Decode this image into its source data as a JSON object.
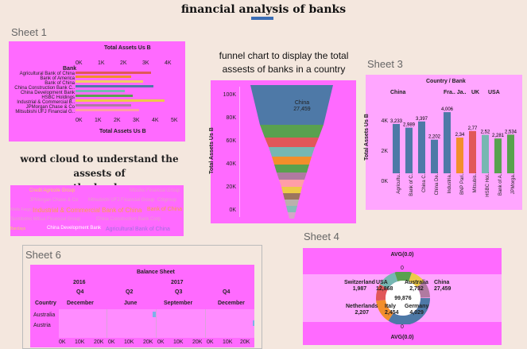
{
  "page_title": "financial analysis of banks",
  "sheet1": {
    "label": "Sheet 1",
    "axis_title": "Total Assets Us B",
    "row_header": "Bank",
    "ticks_top": [
      "0K",
      "1K",
      "2K",
      "3K",
      "4K"
    ],
    "ticks_bottom": [
      "0K",
      "1K",
      "2K",
      "3K",
      "4K",
      "5K"
    ],
    "banks": [
      "Agricultural Bank of China",
      "Bank of America",
      "Bank of China",
      "China Construction Bank C..",
      "China Development Bank",
      "HSBC Holdings",
      "Industrial & Commercial B..",
      "JPMorgan Chase & Co",
      "Mitsubishi UFJ Financial G.."
    ]
  },
  "funnel": {
    "heading_line1": "funnel chart to display the total",
    "heading_line2": "assests of banks in a country",
    "axis_title": "Total Assets Us B",
    "ticks": [
      "100K",
      "80K",
      "60K",
      "40K",
      "20K",
      "0K"
    ],
    "top_label": "China",
    "top_value": "27,459"
  },
  "sheet3": {
    "label": "Sheet 3",
    "header": "Country / Bank",
    "countries": [
      "China",
      "Fra.. Ja..",
      "UK",
      "USA"
    ],
    "axis_title": "Total Assets Us B",
    "ticks": [
      "4K",
      "2K",
      "0K"
    ],
    "bars": [
      {
        "name": "Agricultu..",
        "value": "3,233",
        "color": "#4e79a7"
      },
      {
        "name": "Bank of C..",
        "value": "2,989",
        "color": "#4e79a7"
      },
      {
        "name": "China C..",
        "value": "3,397",
        "color": "#4e79a7"
      },
      {
        "name": "China De..",
        "value": "2,202",
        "color": "#4e79a7"
      },
      {
        "name": "Industria..",
        "value": "4,006",
        "color": "#4e79a7"
      },
      {
        "name": "BNP Pari..",
        "value": "2,34",
        "color": "#f28e2b"
      },
      {
        "name": "Mitsubis..",
        "value": "2,77",
        "color": "#e15759"
      },
      {
        "name": "HSBC Hol..",
        "value": "2,52",
        "color": "#76b7b2"
      },
      {
        "name": "Bank of A..",
        "value": "2,281",
        "color": "#59a14f"
      },
      {
        "name": "JPMorga..",
        "value": "2,534",
        "color": "#59a14f"
      }
    ]
  },
  "wordcloud": {
    "heading_line1": "word cloud to understand the assests of",
    "heading_line2": "the banks",
    "words": [
      {
        "text": "Credit Agricole Group",
        "color": "#f1ce63",
        "size": 6
      },
      {
        "text": "Mizuho Financial Group",
        "color": "#e6a0c4",
        "size": 6
      },
      {
        "text": "JPMorgan Chase & Co",
        "color": "#e6a0c4",
        "size": 6
      },
      {
        "text": "Mitsubishi UFJ Financial Group",
        "color": "#e6a0c4",
        "size": 6
      },
      {
        "text": "Citigroup",
        "color": "#e6a0c4",
        "size": 6
      },
      {
        "text": "Wells Fargo",
        "color": "#e6a0c4",
        "size": 5
      },
      {
        "text": "Industrial & Commercial Bank of China",
        "color": "#f7a04b",
        "size": 8
      },
      {
        "text": "Bank of China",
        "color": "#f7a04b",
        "size": 7
      },
      {
        "text": "Sumitomo Mitsui Financial Group",
        "color": "#e6a0c4",
        "size": 6
      },
      {
        "text": "China Construction Bank Corp",
        "color": "#e6a0c4",
        "size": 6
      },
      {
        "text": "Barclays",
        "color": "#f1ce63",
        "size": 5
      },
      {
        "text": "China Development Bank",
        "color": "#ffffff",
        "size": 6
      },
      {
        "text": "Agricultural Bank of China",
        "color": "#a06ee0",
        "size": 7
      },
      {
        "text": "Deutsche Bank",
        "color": "#f1ce63",
        "size": 5
      }
    ]
  },
  "sheet6": {
    "label": "Sheet 6",
    "chart_title": "Balance Sheet",
    "years": [
      "2016",
      "2017"
    ],
    "quarters": [
      "Q4",
      "Q2",
      "Q3",
      "Q4"
    ],
    "months": [
      "December",
      "June",
      "September",
      "December"
    ],
    "country_header": "Country",
    "countries": [
      "Australia",
      "Austria"
    ],
    "axis_ticks": [
      "0K",
      "10K",
      "20K",
      "0K",
      "10K",
      "20K",
      "0K",
      "10K",
      "20K",
      "0K",
      "10K",
      "20K"
    ]
  },
  "sheet4": {
    "label": "Sheet 4",
    "avg_top": "AVG(0.0)",
    "avg_bottom": "AVG(0.0)",
    "zero_top": "0",
    "zero_bottom": "0",
    "slices": [
      {
        "name": "Switzerland",
        "value": "1,987"
      },
      {
        "name": "USA",
        "value": "12,868"
      },
      {
        "name": "Australia",
        "value": "2,732"
      },
      {
        "name": "Netherlands",
        "value": "2,207"
      },
      {
        "name": "Italy",
        "value": "2,454"
      },
      {
        "name": "Germany",
        "value": "4,029"
      },
      {
        "name": "China",
        "value": "27,459"
      }
    ],
    "center_value": "99,876"
  },
  "colors": {
    "panel": "#ff6aff",
    "light_panel": "#ffa6ff",
    "funnel_top": "#4e79a7"
  }
}
